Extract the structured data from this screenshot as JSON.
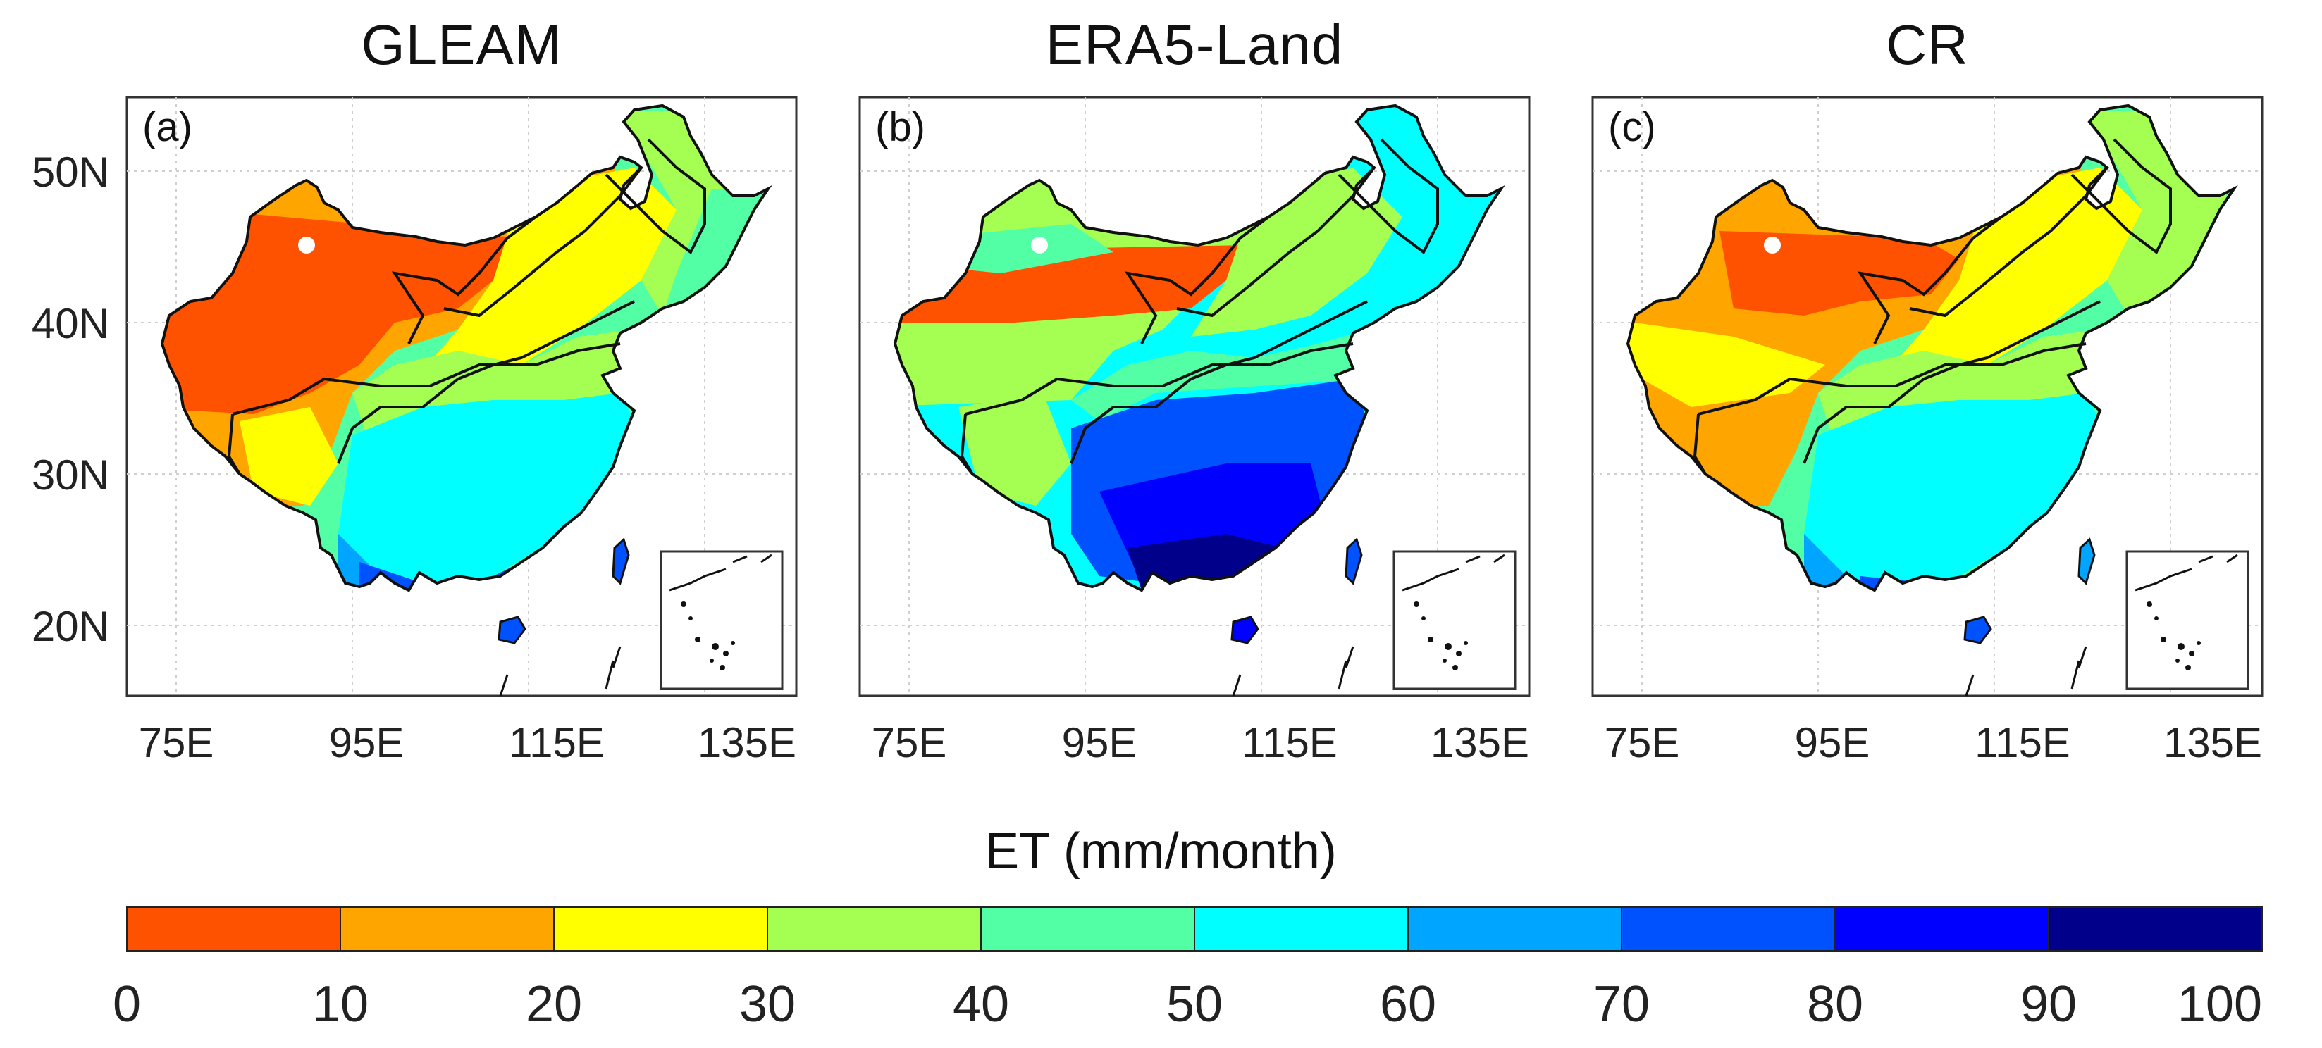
{
  "panels": [
    {
      "id": "a",
      "title": "GLEAM",
      "label": "(a)"
    },
    {
      "id": "b",
      "title": "ERA5-Land",
      "label": "(b)"
    },
    {
      "id": "c",
      "title": "CR",
      "label": "(c)"
    }
  ],
  "axes": {
    "x_ticks": [
      "75E",
      "95E",
      "115E",
      "135E"
    ],
    "y_ticks": [
      "50N",
      "40N",
      "30N",
      "20N"
    ]
  },
  "colorbar": {
    "title": "ET (mm/month)",
    "ticks": [
      "0",
      "10",
      "20",
      "30",
      "40",
      "50",
      "60",
      "70",
      "80",
      "90",
      "100"
    ],
    "colors": [
      "#ff5200",
      "#ffa500",
      "#ffff00",
      "#a5ff52",
      "#52ffa5",
      "#00ffff",
      "#00a5ff",
      "#0052ff",
      "#0000ff",
      "#00008b"
    ]
  }
}
